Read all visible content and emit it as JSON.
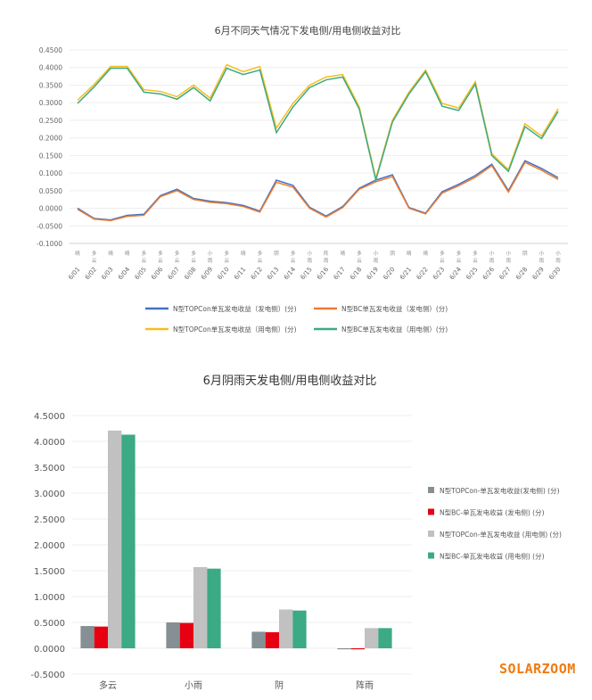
{
  "brand": "SOLARZOOM",
  "chart_data": [
    {
      "type": "line",
      "title": "6月不同天气情况下发电侧/用电侧收益对比",
      "ylim": [
        -0.1,
        0.45
      ],
      "yticks": [
        "0.4500",
        "0.4000",
        "0.3500",
        "0.3000",
        "0.2500",
        "0.2000",
        "0.1500",
        "0.1000",
        "0.0500",
        "0.0000",
        "-0.0500",
        "-0.1000"
      ],
      "grid": true,
      "legend_position": "bottom",
      "x": [
        "6/01",
        "6/02",
        "6/03",
        "6/04",
        "6/05",
        "6/06",
        "6/07",
        "6/08",
        "6/09",
        "6/10",
        "6/11",
        "6/12",
        "6/13",
        "6/14",
        "6/15",
        "6/16",
        "6/17",
        "6/18",
        "6/19",
        "6/20",
        "6/21",
        "6/22",
        "6/23",
        "6/24",
        "6/25",
        "6/26",
        "6/27",
        "6/28",
        "6/29",
        "6/30"
      ],
      "weather": [
        "晴",
        "多云",
        "晴",
        "晴",
        "多云",
        "多云",
        "多云",
        "多云",
        "小雨",
        "多云",
        "晴",
        "多云",
        "阴",
        "多云",
        "小雨",
        "阵雨",
        "晴",
        "多云",
        "小雨",
        "阴",
        "晴",
        "晴",
        "多云",
        "多云",
        "多云",
        "小雨",
        "小雨",
        "阴",
        "小雨",
        "小雨"
      ],
      "series": [
        {
          "name": "N型TOPCon单瓦发电收益（发电侧）(分)",
          "color": "#4472c4",
          "values": [
            0.0,
            -0.029,
            -0.033,
            -0.02,
            -0.017,
            0.036,
            0.054,
            0.028,
            0.02,
            0.016,
            0.008,
            -0.008,
            0.08,
            0.065,
            0.003,
            -0.022,
            0.005,
            0.057,
            0.08,
            0.095,
            0.002,
            -0.014,
            0.047,
            0.068,
            0.093,
            0.125,
            0.05,
            0.135,
            0.113,
            0.087
          ]
        },
        {
          "name": "N型BC单瓦发电收益（发电侧）(分)",
          "color": "#ed7d31",
          "values": [
            -0.003,
            -0.031,
            -0.035,
            -0.023,
            -0.02,
            0.033,
            0.05,
            0.025,
            0.017,
            0.013,
            0.005,
            -0.011,
            0.074,
            0.06,
            0.0,
            -0.025,
            0.002,
            0.054,
            0.075,
            0.09,
            0.0,
            -0.016,
            0.043,
            0.064,
            0.088,
            0.121,
            0.046,
            0.13,
            0.108,
            0.082
          ]
        },
        {
          "name": "N型TOPCon单瓦发电收益（用电侧）(分)",
          "color": "#f5be1e",
          "values": [
            0.307,
            0.352,
            0.403,
            0.403,
            0.337,
            0.332,
            0.317,
            0.35,
            0.313,
            0.408,
            0.388,
            0.403,
            0.228,
            0.298,
            0.35,
            0.373,
            0.38,
            0.288,
            0.085,
            0.25,
            0.33,
            0.393,
            0.298,
            0.285,
            0.36,
            0.155,
            0.11,
            0.24,
            0.205,
            0.283
          ]
        },
        {
          "name": "N型BC单瓦发电收益（用电侧）(分)",
          "color": "#3daa80",
          "values": [
            0.298,
            0.345,
            0.398,
            0.398,
            0.33,
            0.325,
            0.31,
            0.343,
            0.305,
            0.398,
            0.38,
            0.393,
            0.215,
            0.288,
            0.343,
            0.365,
            0.373,
            0.282,
            0.08,
            0.245,
            0.325,
            0.388,
            0.29,
            0.278,
            0.353,
            0.15,
            0.105,
            0.232,
            0.198,
            0.275
          ]
        }
      ]
    },
    {
      "type": "bar",
      "title": "6月阴雨天发电侧/用电侧收益对比",
      "ylim": [
        -0.5,
        4.5
      ],
      "yticks": [
        "4.5000",
        "4.0000",
        "3.5000",
        "3.0000",
        "2.5000",
        "2.0000",
        "1.5000",
        "1.0000",
        "0.5000",
        "0.0000",
        "-0.5000"
      ],
      "grid": true,
      "legend_position": "right",
      "categories": [
        "多云",
        "小雨",
        "阴",
        "阵雨"
      ],
      "series": [
        {
          "name": "N型TOPCon-单瓦发电收益(发电侧) (分)",
          "color": "#858f94",
          "values": [
            0.43,
            0.5,
            0.32,
            -0.02
          ]
        },
        {
          "name": "N型BC-单瓦发电收益 (发电侧) (分)",
          "color": "#e60012",
          "values": [
            0.42,
            0.49,
            0.31,
            -0.02
          ]
        },
        {
          "name": "N型TOPCon-单瓦发电收益 (用电侧) (分)",
          "color": "#c0c1c0",
          "values": [
            4.21,
            1.57,
            0.75,
            0.39
          ]
        },
        {
          "name": "N型BC-单瓦发电收益 (用电侧) (分)",
          "color": "#3caa84",
          "values": [
            4.13,
            1.54,
            0.73,
            0.39
          ]
        }
      ]
    }
  ]
}
